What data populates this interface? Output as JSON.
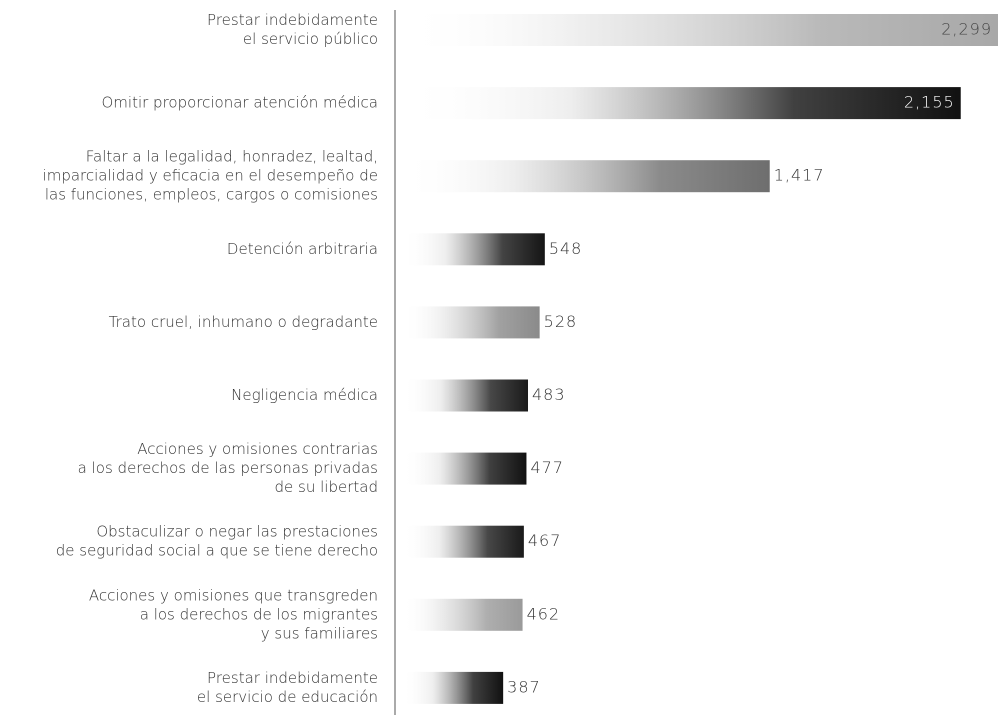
{
  "chart_data": {
    "type": "bar",
    "orientation": "horizontal",
    "categories": [
      [
        "Prestar indebidamente",
        "el servicio público"
      ],
      [
        "Omitir proporcionar atención médica"
      ],
      [
        "Faltar a la legalidad, honradez, lealtad,",
        "imparcialidad y eficacia en el desempeño de",
        "las funciones, empleos, cargos o comisiones"
      ],
      [
        "Detención arbitraria"
      ],
      [
        "Trato cruel, inhumano o degradante"
      ],
      [
        "Negligencia médica"
      ],
      [
        "Acciones y omisiones contrarias",
        "a los derechos de las personas privadas",
        "de su libertad"
      ],
      [
        "Obstaculizar o negar las prestaciones",
        "de seguridad social a que se tiene derecho"
      ],
      [
        "Acciones y omisiones que transgreden",
        "a los derechos de los migrantes",
        "y sus familiares"
      ],
      [
        "Prestar indebidamente",
        "el servicio de educación"
      ]
    ],
    "values": [
      2299,
      2155,
      1417,
      548,
      528,
      483,
      477,
      467,
      462,
      387
    ],
    "value_labels": [
      "2,299",
      "2,155",
      "1,417",
      "548",
      "528",
      "483",
      "477",
      "467",
      "462",
      "387"
    ],
    "colors": [
      "#a8a8a8",
      "#111111",
      "#6e6e6e",
      "#151515",
      "#8a8a8a",
      "#1a1a1a",
      "#111111",
      "#1a1a1a",
      "#9a9a9a",
      "#111111"
    ]
  }
}
